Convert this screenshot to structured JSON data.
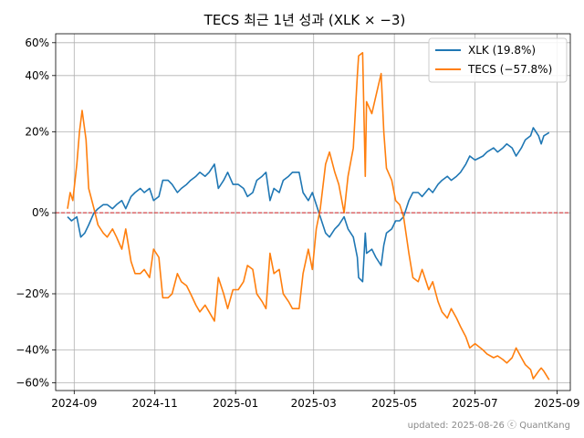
{
  "chart_data": {
    "type": "line",
    "title": "TECS 최근 1년 성과 (XLK × −3)",
    "xlabel": "",
    "ylabel": "",
    "x_ticks": [
      "2024-09-01",
      "2024-11-01",
      "2025-01-01",
      "2025-03-01",
      "2025-05-01",
      "2025-07-01",
      "2025-09-01"
    ],
    "x_tick_labels": [
      "2024-09",
      "2024-11",
      "2025-01",
      "2025-03",
      "2025-05",
      "2025-07",
      "2025-09"
    ],
    "xlim": [
      "2024-08-18",
      "2025-09-11"
    ],
    "y_scale": "symlog",
    "y_ticks": [
      60,
      40,
      20,
      0,
      -20,
      -40,
      -60
    ],
    "y_tick_labels": [
      "60%",
      "40%",
      "20%",
      "0%",
      "−20%",
      "−40%",
      "−60%"
    ],
    "ylim": [
      -66,
      67
    ],
    "reference_line": {
      "y": 0,
      "color": "#d62728",
      "style": "dashed"
    },
    "grid": true,
    "legend_position": "top-right",
    "footer": "updated: 2025-08-26 ⓒ QuantKang",
    "series": [
      {
        "name": "XLK (19.8%)",
        "color": "#1f77b4",
        "points": [
          [
            "2024-08-27",
            -1
          ],
          [
            "2024-08-30",
            -2
          ],
          [
            "2024-09-03",
            -1
          ],
          [
            "2024-09-06",
            -6
          ],
          [
            "2024-09-09",
            -5
          ],
          [
            "2024-09-12",
            -3
          ],
          [
            "2024-09-16",
            0
          ],
          [
            "2024-09-19",
            1
          ],
          [
            "2024-09-23",
            2
          ],
          [
            "2024-09-26",
            2
          ],
          [
            "2024-09-30",
            1
          ],
          [
            "2024-10-03",
            2
          ],
          [
            "2024-10-07",
            3
          ],
          [
            "2024-10-10",
            1
          ],
          [
            "2024-10-14",
            4
          ],
          [
            "2024-10-17",
            5
          ],
          [
            "2024-10-21",
            6
          ],
          [
            "2024-10-24",
            5
          ],
          [
            "2024-10-28",
            6
          ],
          [
            "2024-10-31",
            3
          ],
          [
            "2024-11-04",
            4
          ],
          [
            "2024-11-07",
            8
          ],
          [
            "2024-11-11",
            8
          ],
          [
            "2024-11-14",
            7
          ],
          [
            "2024-11-18",
            5
          ],
          [
            "2024-11-21",
            6
          ],
          [
            "2024-11-25",
            7
          ],
          [
            "2024-11-28",
            8
          ],
          [
            "2024-12-02",
            9
          ],
          [
            "2024-12-05",
            10
          ],
          [
            "2024-12-09",
            9
          ],
          [
            "2024-12-12",
            10
          ],
          [
            "2024-12-16",
            12
          ],
          [
            "2024-12-19",
            6
          ],
          [
            "2024-12-23",
            8
          ],
          [
            "2024-12-26",
            10
          ],
          [
            "2024-12-30",
            7
          ],
          [
            "2025-01-03",
            7
          ],
          [
            "2025-01-07",
            6
          ],
          [
            "2025-01-10",
            4
          ],
          [
            "2025-01-14",
            5
          ],
          [
            "2025-01-17",
            8
          ],
          [
            "2025-01-21",
            9
          ],
          [
            "2025-01-24",
            10
          ],
          [
            "2025-01-27",
            3
          ],
          [
            "2025-01-30",
            6
          ],
          [
            "2025-02-03",
            5
          ],
          [
            "2025-02-06",
            8
          ],
          [
            "2025-02-10",
            9
          ],
          [
            "2025-02-13",
            10
          ],
          [
            "2025-02-18",
            10
          ],
          [
            "2025-02-21",
            5
          ],
          [
            "2025-02-25",
            3
          ],
          [
            "2025-02-28",
            5
          ],
          [
            "2025-03-03",
            2
          ],
          [
            "2025-03-06",
            -1
          ],
          [
            "2025-03-10",
            -5
          ],
          [
            "2025-03-13",
            -6
          ],
          [
            "2025-03-17",
            -4
          ],
          [
            "2025-03-20",
            -3
          ],
          [
            "2025-03-24",
            -1
          ],
          [
            "2025-03-27",
            -4
          ],
          [
            "2025-03-31",
            -6
          ],
          [
            "2025-04-03",
            -11
          ],
          [
            "2025-04-04",
            -16
          ],
          [
            "2025-04-07",
            -17
          ],
          [
            "2025-04-09",
            -5
          ],
          [
            "2025-04-10",
            -10
          ],
          [
            "2025-04-14",
            -9
          ],
          [
            "2025-04-17",
            -11
          ],
          [
            "2025-04-21",
            -13
          ],
          [
            "2025-04-23",
            -8
          ],
          [
            "2025-04-25",
            -5
          ],
          [
            "2025-04-29",
            -4
          ],
          [
            "2025-05-02",
            -2
          ],
          [
            "2025-05-05",
            -2
          ],
          [
            "2025-05-08",
            -1
          ],
          [
            "2025-05-12",
            3
          ],
          [
            "2025-05-15",
            5
          ],
          [
            "2025-05-19",
            5
          ],
          [
            "2025-05-22",
            4
          ],
          [
            "2025-05-27",
            6
          ],
          [
            "2025-05-30",
            5
          ],
          [
            "2025-06-03",
            7
          ],
          [
            "2025-06-06",
            8
          ],
          [
            "2025-06-10",
            9
          ],
          [
            "2025-06-13",
            8
          ],
          [
            "2025-06-17",
            9
          ],
          [
            "2025-06-20",
            10
          ],
          [
            "2025-06-24",
            12
          ],
          [
            "2025-06-27",
            14
          ],
          [
            "2025-07-01",
            13
          ],
          [
            "2025-07-07",
            14
          ],
          [
            "2025-07-10",
            15
          ],
          [
            "2025-07-15",
            16
          ],
          [
            "2025-07-18",
            15
          ],
          [
            "2025-07-22",
            16
          ],
          [
            "2025-07-25",
            17
          ],
          [
            "2025-07-29",
            16
          ],
          [
            "2025-08-01",
            14
          ],
          [
            "2025-08-05",
            16
          ],
          [
            "2025-08-08",
            18
          ],
          [
            "2025-08-12",
            19
          ],
          [
            "2025-08-14",
            21
          ],
          [
            "2025-08-18",
            19
          ],
          [
            "2025-08-20",
            17
          ],
          [
            "2025-08-22",
            19
          ],
          [
            "2025-08-26",
            19.8
          ]
        ]
      },
      {
        "name": "TECS (−57.8%)",
        "color": "#ff7f0e",
        "points": [
          [
            "2024-08-27",
            1
          ],
          [
            "2024-08-29",
            5
          ],
          [
            "2024-08-31",
            3
          ],
          [
            "2024-09-03",
            12
          ],
          [
            "2024-09-05",
            20
          ],
          [
            "2024-09-07",
            26
          ],
          [
            "2024-09-10",
            18
          ],
          [
            "2024-09-12",
            6
          ],
          [
            "2024-09-16",
            1
          ],
          [
            "2024-09-19",
            -3
          ],
          [
            "2024-09-23",
            -5
          ],
          [
            "2024-09-26",
            -6
          ],
          [
            "2024-09-30",
            -4
          ],
          [
            "2024-10-03",
            -6
          ],
          [
            "2024-10-07",
            -9
          ],
          [
            "2024-10-10",
            -4
          ],
          [
            "2024-10-14",
            -12
          ],
          [
            "2024-10-17",
            -15
          ],
          [
            "2024-10-21",
            -15
          ],
          [
            "2024-10-24",
            -14
          ],
          [
            "2024-10-28",
            -16
          ],
          [
            "2024-10-31",
            -9
          ],
          [
            "2024-11-04",
            -11
          ],
          [
            "2024-11-07",
            -21
          ],
          [
            "2024-11-11",
            -21
          ],
          [
            "2024-11-14",
            -20
          ],
          [
            "2024-11-18",
            -15
          ],
          [
            "2024-11-21",
            -17
          ],
          [
            "2024-11-25",
            -18
          ],
          [
            "2024-11-28",
            -20
          ],
          [
            "2024-12-02",
            -23
          ],
          [
            "2024-12-05",
            -25
          ],
          [
            "2024-12-09",
            -23
          ],
          [
            "2024-12-12",
            -25
          ],
          [
            "2024-12-16",
            -28
          ],
          [
            "2024-12-19",
            -16
          ],
          [
            "2024-12-23",
            -20
          ],
          [
            "2024-12-26",
            -24
          ],
          [
            "2024-12-30",
            -19
          ],
          [
            "2025-01-03",
            -19
          ],
          [
            "2025-01-07",
            -17
          ],
          [
            "2025-01-10",
            -13
          ],
          [
            "2025-01-14",
            -14
          ],
          [
            "2025-01-17",
            -20
          ],
          [
            "2025-01-21",
            -22
          ],
          [
            "2025-01-24",
            -24
          ],
          [
            "2025-01-27",
            -10
          ],
          [
            "2025-01-30",
            -15
          ],
          [
            "2025-02-03",
            -14
          ],
          [
            "2025-02-06",
            -20
          ],
          [
            "2025-02-10",
            -22
          ],
          [
            "2025-02-13",
            -24
          ],
          [
            "2025-02-18",
            -24
          ],
          [
            "2025-02-21",
            -15
          ],
          [
            "2025-02-25",
            -9
          ],
          [
            "2025-02-28",
            -14
          ],
          [
            "2025-03-03",
            -4
          ],
          [
            "2025-03-06",
            1
          ],
          [
            "2025-03-10",
            12
          ],
          [
            "2025-03-13",
            15
          ],
          [
            "2025-03-17",
            10
          ],
          [
            "2025-03-20",
            7
          ],
          [
            "2025-03-24",
            0
          ],
          [
            "2025-03-27",
            9
          ],
          [
            "2025-03-31",
            16
          ],
          [
            "2025-04-03",
            40
          ],
          [
            "2025-04-04",
            51
          ],
          [
            "2025-04-07",
            53
          ],
          [
            "2025-04-09",
            9
          ],
          [
            "2025-04-10",
            29
          ],
          [
            "2025-04-14",
            25
          ],
          [
            "2025-04-17",
            31
          ],
          [
            "2025-04-21",
            41
          ],
          [
            "2025-04-23",
            20
          ],
          [
            "2025-04-25",
            11
          ],
          [
            "2025-04-29",
            8
          ],
          [
            "2025-05-02",
            3
          ],
          [
            "2025-05-05",
            2
          ],
          [
            "2025-05-08",
            -1
          ],
          [
            "2025-05-12",
            -10
          ],
          [
            "2025-05-15",
            -16
          ],
          [
            "2025-05-19",
            -17
          ],
          [
            "2025-05-22",
            -14
          ],
          [
            "2025-05-27",
            -19
          ],
          [
            "2025-05-30",
            -17
          ],
          [
            "2025-06-03",
            -22
          ],
          [
            "2025-06-06",
            -25
          ],
          [
            "2025-06-10",
            -27
          ],
          [
            "2025-06-13",
            -24
          ],
          [
            "2025-06-17",
            -27
          ],
          [
            "2025-06-20",
            -30
          ],
          [
            "2025-06-24",
            -34
          ],
          [
            "2025-06-27",
            -39
          ],
          [
            "2025-07-01",
            -37
          ],
          [
            "2025-07-07",
            -40
          ],
          [
            "2025-07-10",
            -42
          ],
          [
            "2025-07-15",
            -44
          ],
          [
            "2025-07-18",
            -43
          ],
          [
            "2025-07-22",
            -45
          ],
          [
            "2025-07-25",
            -47
          ],
          [
            "2025-07-29",
            -44
          ],
          [
            "2025-08-01",
            -39
          ],
          [
            "2025-08-05",
            -44
          ],
          [
            "2025-08-08",
            -48
          ],
          [
            "2025-08-12",
            -51
          ],
          [
            "2025-08-14",
            -57
          ],
          [
            "2025-08-18",
            -52
          ],
          [
            "2025-08-20",
            -50
          ],
          [
            "2025-08-22",
            -52
          ],
          [
            "2025-08-26",
            -57.8
          ]
        ]
      }
    ]
  }
}
